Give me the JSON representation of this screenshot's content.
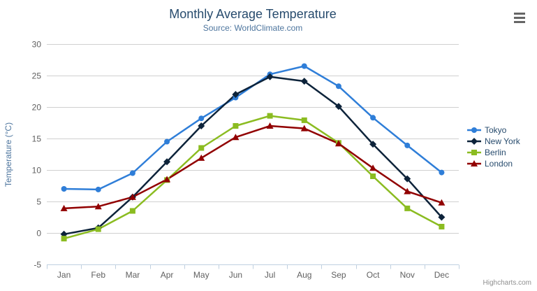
{
  "chart_data": {
    "type": "line",
    "title": "Monthly Average Temperature",
    "subtitle": "Source: WorldClimate.com",
    "xlabel": "",
    "ylabel": "Temperature (°C)",
    "ylim": [
      -5,
      30
    ],
    "yticks": [
      -5,
      0,
      5,
      10,
      15,
      20,
      25,
      30
    ],
    "grid": true,
    "legend_position": "right",
    "categories": [
      "Jan",
      "Feb",
      "Mar",
      "Apr",
      "May",
      "Jun",
      "Jul",
      "Aug",
      "Sep",
      "Oct",
      "Nov",
      "Dec"
    ],
    "series": [
      {
        "name": "Tokyo",
        "color": "#2f7ed8",
        "marker": "circle",
        "values": [
          7.0,
          6.9,
          9.5,
          14.5,
          18.2,
          21.5,
          25.2,
          26.5,
          23.3,
          18.3,
          13.9,
          9.6
        ]
      },
      {
        "name": "New York",
        "color": "#0d233a",
        "marker": "diamond",
        "values": [
          -0.2,
          0.8,
          5.7,
          11.3,
          17.0,
          22.0,
          24.8,
          24.1,
          20.1,
          14.1,
          8.6,
          2.5
        ]
      },
      {
        "name": "Berlin",
        "color": "#8bbc21",
        "marker": "square",
        "values": [
          -0.9,
          0.6,
          3.5,
          8.4,
          13.5,
          17.0,
          18.6,
          17.9,
          14.3,
          9.0,
          3.9,
          1.0
        ]
      },
      {
        "name": "London",
        "color": "#910000",
        "marker": "triangle",
        "values": [
          3.9,
          4.2,
          5.7,
          8.5,
          11.9,
          15.2,
          17.0,
          16.6,
          14.2,
          10.3,
          6.6,
          4.8
        ]
      }
    ]
  },
  "credits": {
    "label": "Highcharts.com"
  }
}
